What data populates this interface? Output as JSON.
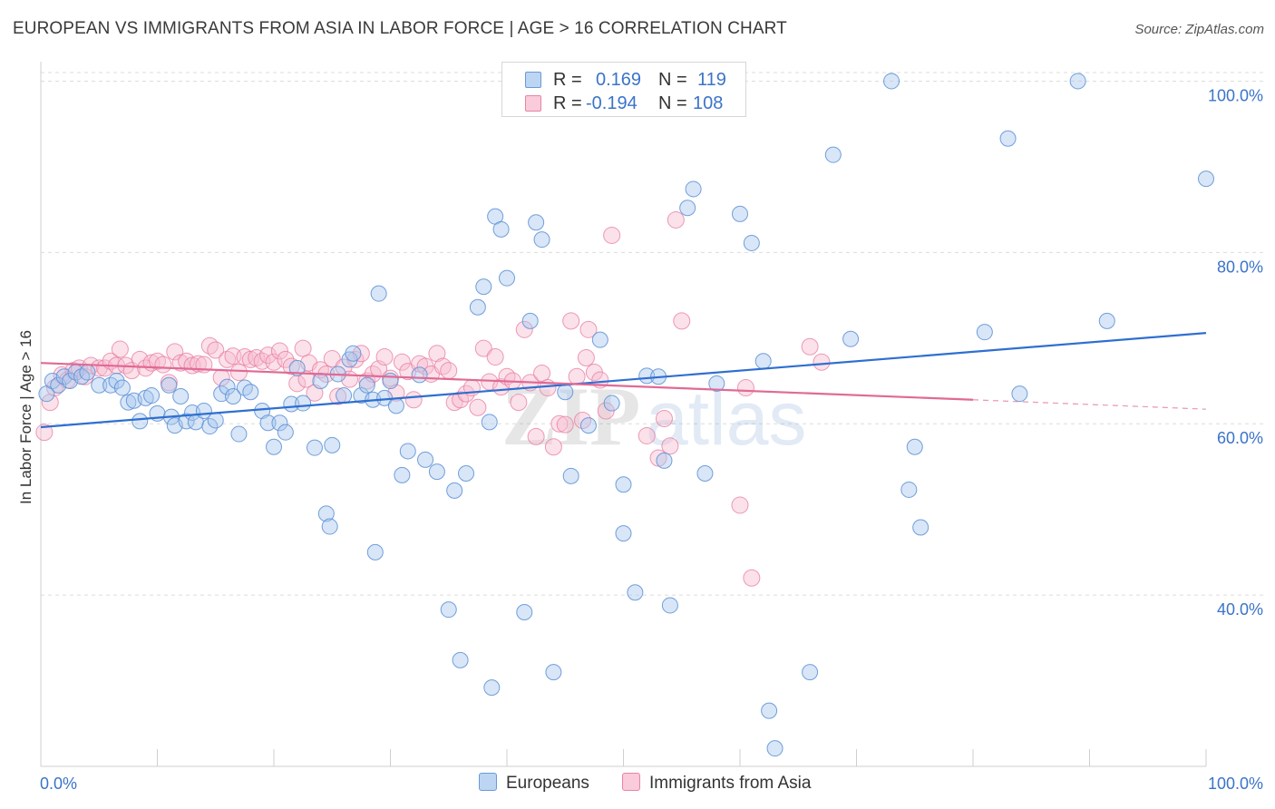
{
  "title": "EUROPEAN VS IMMIGRANTS FROM ASIA IN LABOR FORCE | AGE > 16 CORRELATION CHART",
  "source": "Source: ZipAtlas.com",
  "watermark": {
    "zip": "ZIP",
    "atlas": "atlas"
  },
  "legend": {
    "rows": [
      {
        "r_label": "R =",
        "r_value": "0.169",
        "n_label": "N =",
        "n_value": "119"
      },
      {
        "r_label": "R =",
        "r_value": "-0.194",
        "n_label": "N =",
        "n_value": "108"
      }
    ]
  },
  "bottom_legend": {
    "europeans": "Europeans",
    "asia": "Immigrants from Asia"
  },
  "colors": {
    "europeans_fill": "#a8c8ee",
    "europeans_stroke": "#5b8fd6",
    "europeans_line": "#2f6fd0",
    "asia_fill": "#f6bcd0",
    "asia_stroke": "#e8799e",
    "asia_line": "#e06a95",
    "axis_label": "#3b73c9",
    "grid": "#dcdcdc"
  },
  "chart_data": {
    "type": "scatter",
    "title": "EUROPEAN VS IMMIGRANTS FROM ASIA IN LABOR FORCE | AGE > 16 CORRELATION CHART",
    "xlabel": "",
    "ylabel": "In Labor Force | Age > 16",
    "xlim": [
      0,
      100
    ],
    "ylim": [
      20,
      101
    ],
    "x_tick_labels": [
      "0.0%",
      "100.0%"
    ],
    "y_ticks": [
      40,
      60,
      80,
      100
    ],
    "y_tick_labels": [
      "40.0%",
      "60.0%",
      "80.0%",
      "100.0%"
    ],
    "grid": "horizontal dashed",
    "legend_position": "top-center",
    "series": [
      {
        "name": "Europeans",
        "R": 0.169,
        "N": 119,
        "trend": {
          "x": [
            0,
            100
          ],
          "y": [
            59.6,
            70.6
          ]
        },
        "points": [
          [
            0.5,
            63.5
          ],
          [
            1,
            65
          ],
          [
            1.5,
            64.5
          ],
          [
            2,
            65.5
          ],
          [
            2.5,
            65
          ],
          [
            3,
            66
          ],
          [
            3.5,
            65.5
          ],
          [
            4,
            66
          ],
          [
            5,
            64.5
          ],
          [
            6,
            64.5
          ],
          [
            6.5,
            65
          ],
          [
            7,
            64.2
          ],
          [
            7.5,
            62.5
          ],
          [
            8,
            62.7
          ],
          [
            8.5,
            60.3
          ],
          [
            9,
            63
          ],
          [
            9.5,
            63.3
          ],
          [
            10,
            61.2
          ],
          [
            11,
            64.5
          ],
          [
            11.2,
            60.8
          ],
          [
            11.5,
            59.8
          ],
          [
            12,
            63.2
          ],
          [
            12.5,
            60.3
          ],
          [
            13,
            61.3
          ],
          [
            13.3,
            60.2
          ],
          [
            14,
            61.5
          ],
          [
            14.5,
            59.7
          ],
          [
            15,
            60.4
          ],
          [
            15.5,
            63.5
          ],
          [
            16,
            64.3
          ],
          [
            16.5,
            63.2
          ],
          [
            17,
            58.8
          ],
          [
            17.5,
            64.2
          ],
          [
            18,
            63.7
          ],
          [
            19,
            61.5
          ],
          [
            19.5,
            60.1
          ],
          [
            20,
            57.3
          ],
          [
            20.5,
            60.1
          ],
          [
            21,
            59
          ],
          [
            21.5,
            62.3
          ],
          [
            22,
            66.5
          ],
          [
            22.5,
            62.4
          ],
          [
            23.5,
            57.2
          ],
          [
            24,
            65
          ],
          [
            24.5,
            49.5
          ],
          [
            24.8,
            48
          ],
          [
            25,
            57.5
          ],
          [
            25.5,
            65.8
          ],
          [
            26,
            63.3
          ],
          [
            26.5,
            67.5
          ],
          [
            26.8,
            68.2
          ],
          [
            27.5,
            63.3
          ],
          [
            28,
            64.5
          ],
          [
            28.5,
            62.8
          ],
          [
            28.7,
            45
          ],
          [
            29,
            75.2
          ],
          [
            29.5,
            63
          ],
          [
            30,
            65
          ],
          [
            30.5,
            62.1
          ],
          [
            31,
            54
          ],
          [
            31.5,
            56.8
          ],
          [
            32.5,
            65.7
          ],
          [
            33,
            55.8
          ],
          [
            34,
            54.4
          ],
          [
            35,
            38.3
          ],
          [
            35.5,
            52.2
          ],
          [
            36,
            32.4
          ],
          [
            36.5,
            54.2
          ],
          [
            37.5,
            73.6
          ],
          [
            38,
            76
          ],
          [
            38.5,
            60.2
          ],
          [
            38.7,
            29.2
          ],
          [
            39,
            84.2
          ],
          [
            39.5,
            82.7
          ],
          [
            40,
            77
          ],
          [
            41.5,
            38
          ],
          [
            42,
            72
          ],
          [
            42.5,
            83.5
          ],
          [
            43,
            81.5
          ],
          [
            44,
            31
          ],
          [
            45,
            63.7
          ],
          [
            45.5,
            53.9
          ],
          [
            47,
            59.8
          ],
          [
            48,
            69.8
          ],
          [
            49,
            62.4
          ],
          [
            50,
            52.9
          ],
          [
            50,
            47.2
          ],
          [
            51,
            40.3
          ],
          [
            52,
            65.6
          ],
          [
            53,
            65.5
          ],
          [
            53.5,
            55.7
          ],
          [
            54,
            38.8
          ],
          [
            55.5,
            85.2
          ],
          [
            56,
            87.4
          ],
          [
            57,
            54.2
          ],
          [
            58,
            64.7
          ],
          [
            60,
            84.5
          ],
          [
            61,
            81.1
          ],
          [
            62,
            67.3
          ],
          [
            62.5,
            26.5
          ],
          [
            63,
            22.1
          ],
          [
            66,
            31
          ],
          [
            68,
            91.4
          ],
          [
            69.5,
            69.9
          ],
          [
            73,
            100
          ],
          [
            74.5,
            52.3
          ],
          [
            75,
            57.3
          ],
          [
            75.5,
            47.9
          ],
          [
            81,
            70.7
          ],
          [
            84,
            63.5
          ],
          [
            83,
            93.3
          ],
          [
            89,
            100
          ],
          [
            91.5,
            72
          ],
          [
            100,
            88.6
          ]
        ]
      },
      {
        "name": "Immigrants from Asia",
        "R": -0.194,
        "N": 108,
        "trend": {
          "x": [
            0,
            80
          ],
          "y": [
            67.1,
            62.8
          ]
        },
        "trend_dashed": {
          "x": [
            80,
            100
          ],
          "y": [
            62.8,
            61.7
          ]
        },
        "points": [
          [
            0.3,
            59
          ],
          [
            0.8,
            62.5
          ],
          [
            1.2,
            64.2
          ],
          [
            1.8,
            65.7
          ],
          [
            2.3,
            65.1
          ],
          [
            2.8,
            66.2
          ],
          [
            3.3,
            66.5
          ],
          [
            3.8,
            65.5
          ],
          [
            4.3,
            66.8
          ],
          [
            5,
            66.5
          ],
          [
            5.5,
            66.5
          ],
          [
            6,
            67.3
          ],
          [
            6.5,
            66.8
          ],
          [
            6.8,
            68.7
          ],
          [
            7.3,
            66.8
          ],
          [
            7.8,
            66.2
          ],
          [
            8.5,
            67.5
          ],
          [
            9,
            66.5
          ],
          [
            9.5,
            67.1
          ],
          [
            10,
            67.3
          ],
          [
            10.5,
            66.9
          ],
          [
            11,
            64.8
          ],
          [
            11.5,
            68.4
          ],
          [
            12,
            67.1
          ],
          [
            12.5,
            67.3
          ],
          [
            13,
            66.8
          ],
          [
            13.5,
            67
          ],
          [
            14,
            66.9
          ],
          [
            14.5,
            69.1
          ],
          [
            15,
            68.6
          ],
          [
            15.5,
            65.4
          ],
          [
            16,
            67.5
          ],
          [
            16.5,
            67.9
          ],
          [
            17,
            66
          ],
          [
            17.5,
            67.8
          ],
          [
            18,
            67.5
          ],
          [
            18.5,
            67.7
          ],
          [
            19,
            67.3
          ],
          [
            19.5,
            68
          ],
          [
            20,
            67.2
          ],
          [
            20.5,
            68.5
          ],
          [
            21,
            67.5
          ],
          [
            21.5,
            66.7
          ],
          [
            22,
            64.7
          ],
          [
            22.5,
            68.8
          ],
          [
            22.8,
            65.2
          ],
          [
            23,
            67.1
          ],
          [
            23.5,
            63.6
          ],
          [
            24,
            66.3
          ],
          [
            24.5,
            65.8
          ],
          [
            25,
            67.6
          ],
          [
            25.5,
            63.2
          ],
          [
            26,
            66.6
          ],
          [
            26.5,
            65.2
          ],
          [
            27,
            67.5
          ],
          [
            27.5,
            68.2
          ],
          [
            28,
            65
          ],
          [
            28.5,
            65.8
          ],
          [
            29,
            66.4
          ],
          [
            29.5,
            67.8
          ],
          [
            30,
            65.3
          ],
          [
            30.5,
            63.6
          ],
          [
            31,
            67.2
          ],
          [
            31.5,
            66.1
          ],
          [
            32,
            62.8
          ],
          [
            32.5,
            67
          ],
          [
            33,
            66.7
          ],
          [
            33.5,
            65.8
          ],
          [
            34,
            68.2
          ],
          [
            34.5,
            66.7
          ],
          [
            35,
            66.2
          ],
          [
            35.5,
            62.5
          ],
          [
            36,
            62.8
          ],
          [
            36.5,
            63.5
          ],
          [
            37,
            64.2
          ],
          [
            37.5,
            61.9
          ],
          [
            38,
            68.8
          ],
          [
            38.5,
            64.9
          ],
          [
            39,
            67.8
          ],
          [
            39.5,
            64.3
          ],
          [
            40,
            65.5
          ],
          [
            40.5,
            65
          ],
          [
            41,
            62.5
          ],
          [
            41.5,
            71
          ],
          [
            42,
            64.8
          ],
          [
            42.5,
            58.5
          ],
          [
            43,
            65.9
          ],
          [
            43.5,
            64.2
          ],
          [
            44,
            57.3
          ],
          [
            44.5,
            60
          ],
          [
            45,
            59.9
          ],
          [
            45.5,
            72
          ],
          [
            46,
            65.5
          ],
          [
            46.5,
            60.4
          ],
          [
            46.8,
            67.7
          ],
          [
            47,
            71
          ],
          [
            47.5,
            66
          ],
          [
            48,
            65.1
          ],
          [
            48.5,
            61.5
          ],
          [
            49,
            82
          ],
          [
            52,
            58.6
          ],
          [
            53,
            56
          ],
          [
            53.5,
            60.6
          ],
          [
            54,
            57.4
          ],
          [
            54.5,
            83.8
          ],
          [
            55,
            72
          ],
          [
            60,
            50.5
          ],
          [
            60.5,
            64.2
          ],
          [
            61,
            42
          ],
          [
            66,
            69
          ],
          [
            67,
            67.2
          ]
        ]
      }
    ]
  }
}
